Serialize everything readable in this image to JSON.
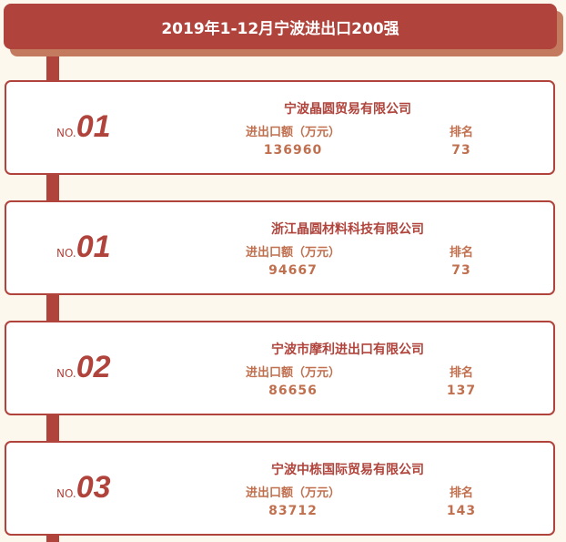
{
  "header": {
    "title": "2019年1-12月宁波进出口200强"
  },
  "labels": {
    "no_prefix": "NO.",
    "amount": "进出口额（万元）",
    "rank": "排名"
  },
  "colors": {
    "accent": "#b0443c",
    "shadow": "#c47a5e",
    "text": "#c0704f",
    "background": "#fdf8ee"
  },
  "items": [
    {
      "no": "01",
      "name": "宁波晶圆贸易有限公司",
      "amount": "136960",
      "rank": "73"
    },
    {
      "no": "01",
      "name": "浙江晶圆材料科技有限公司",
      "amount": "94667",
      "rank": "73"
    },
    {
      "no": "02",
      "name": "宁波市摩利进出口有限公司",
      "amount": "86656",
      "rank": "137"
    },
    {
      "no": "03",
      "name": "宁波中栋国际贸易有限公司",
      "amount": "83712",
      "rank": "143"
    }
  ]
}
